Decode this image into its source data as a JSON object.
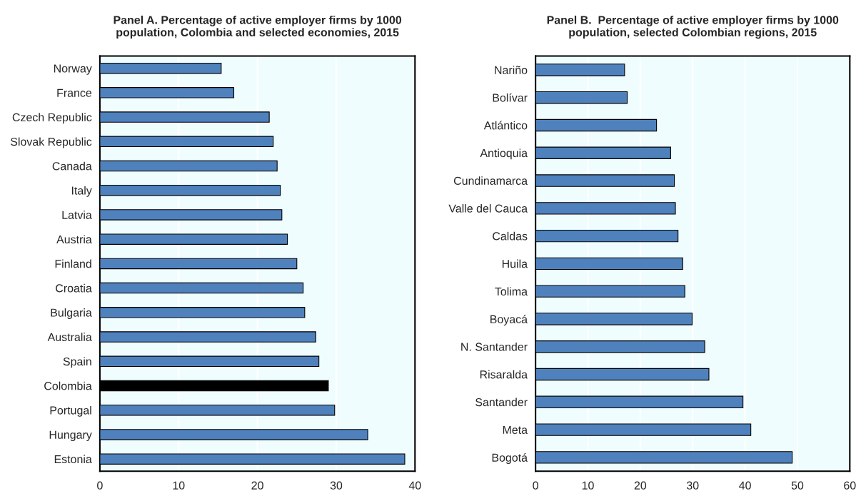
{
  "chart_data": [
    {
      "type": "bar",
      "orientation": "horizontal",
      "title": "Panel A. Percentage of active employer firms by 1000\npopulation, Colombia and selected economies, 2015",
      "categories": [
        "Norway",
        "France",
        "Czech Republic",
        "Slovak Republic",
        "Canada",
        "Italy",
        "Latvia",
        "Austria",
        "Finland",
        "Croatia",
        "Bulgaria",
        "Australia",
        "Spain",
        "Colombia",
        "Portugal",
        "Hungary",
        "Estonia"
      ],
      "values": [
        15.4,
        17.0,
        21.5,
        22.0,
        22.5,
        22.9,
        23.1,
        23.8,
        25.0,
        25.8,
        26.0,
        27.4,
        27.8,
        29.0,
        29.8,
        34.0,
        38.7
      ],
      "colors": [
        "#4f81bd",
        "#4f81bd",
        "#4f81bd",
        "#4f81bd",
        "#4f81bd",
        "#4f81bd",
        "#4f81bd",
        "#4f81bd",
        "#4f81bd",
        "#4f81bd",
        "#4f81bd",
        "#4f81bd",
        "#4f81bd",
        "#000000",
        "#4f81bd",
        "#4f81bd",
        "#4f81bd"
      ],
      "xlim": [
        0,
        40
      ],
      "xticks": [
        0,
        10,
        20,
        30,
        40
      ],
      "grid": "x",
      "legend": false
    },
    {
      "type": "bar",
      "orientation": "horizontal",
      "title": "Panel B.  Percentage of active employer firms by 1000\npopulation, selected Colombian regions, 2015",
      "categories": [
        "Nariño",
        "Bolívar",
        "Atlántico",
        "Antioquia",
        "Cundinamarca",
        "Valle del Cauca",
        "Caldas",
        "Huila",
        "Tolima",
        "Boyacá",
        "N. Santander",
        "Risaralda",
        "Santander",
        "Meta",
        "Bogotá"
      ],
      "values": [
        17.0,
        17.5,
        23.1,
        25.8,
        26.5,
        26.7,
        27.2,
        28.1,
        28.5,
        29.9,
        32.3,
        33.1,
        39.6,
        41.1,
        49.0
      ],
      "colors": [
        "#4f81bd",
        "#4f81bd",
        "#4f81bd",
        "#4f81bd",
        "#4f81bd",
        "#4f81bd",
        "#4f81bd",
        "#4f81bd",
        "#4f81bd",
        "#4f81bd",
        "#4f81bd",
        "#4f81bd",
        "#4f81bd",
        "#4f81bd",
        "#4f81bd"
      ],
      "xlim": [
        0,
        60
      ],
      "xticks": [
        0,
        10,
        20,
        30,
        40,
        50,
        60
      ],
      "grid": "x",
      "legend": false
    }
  ]
}
